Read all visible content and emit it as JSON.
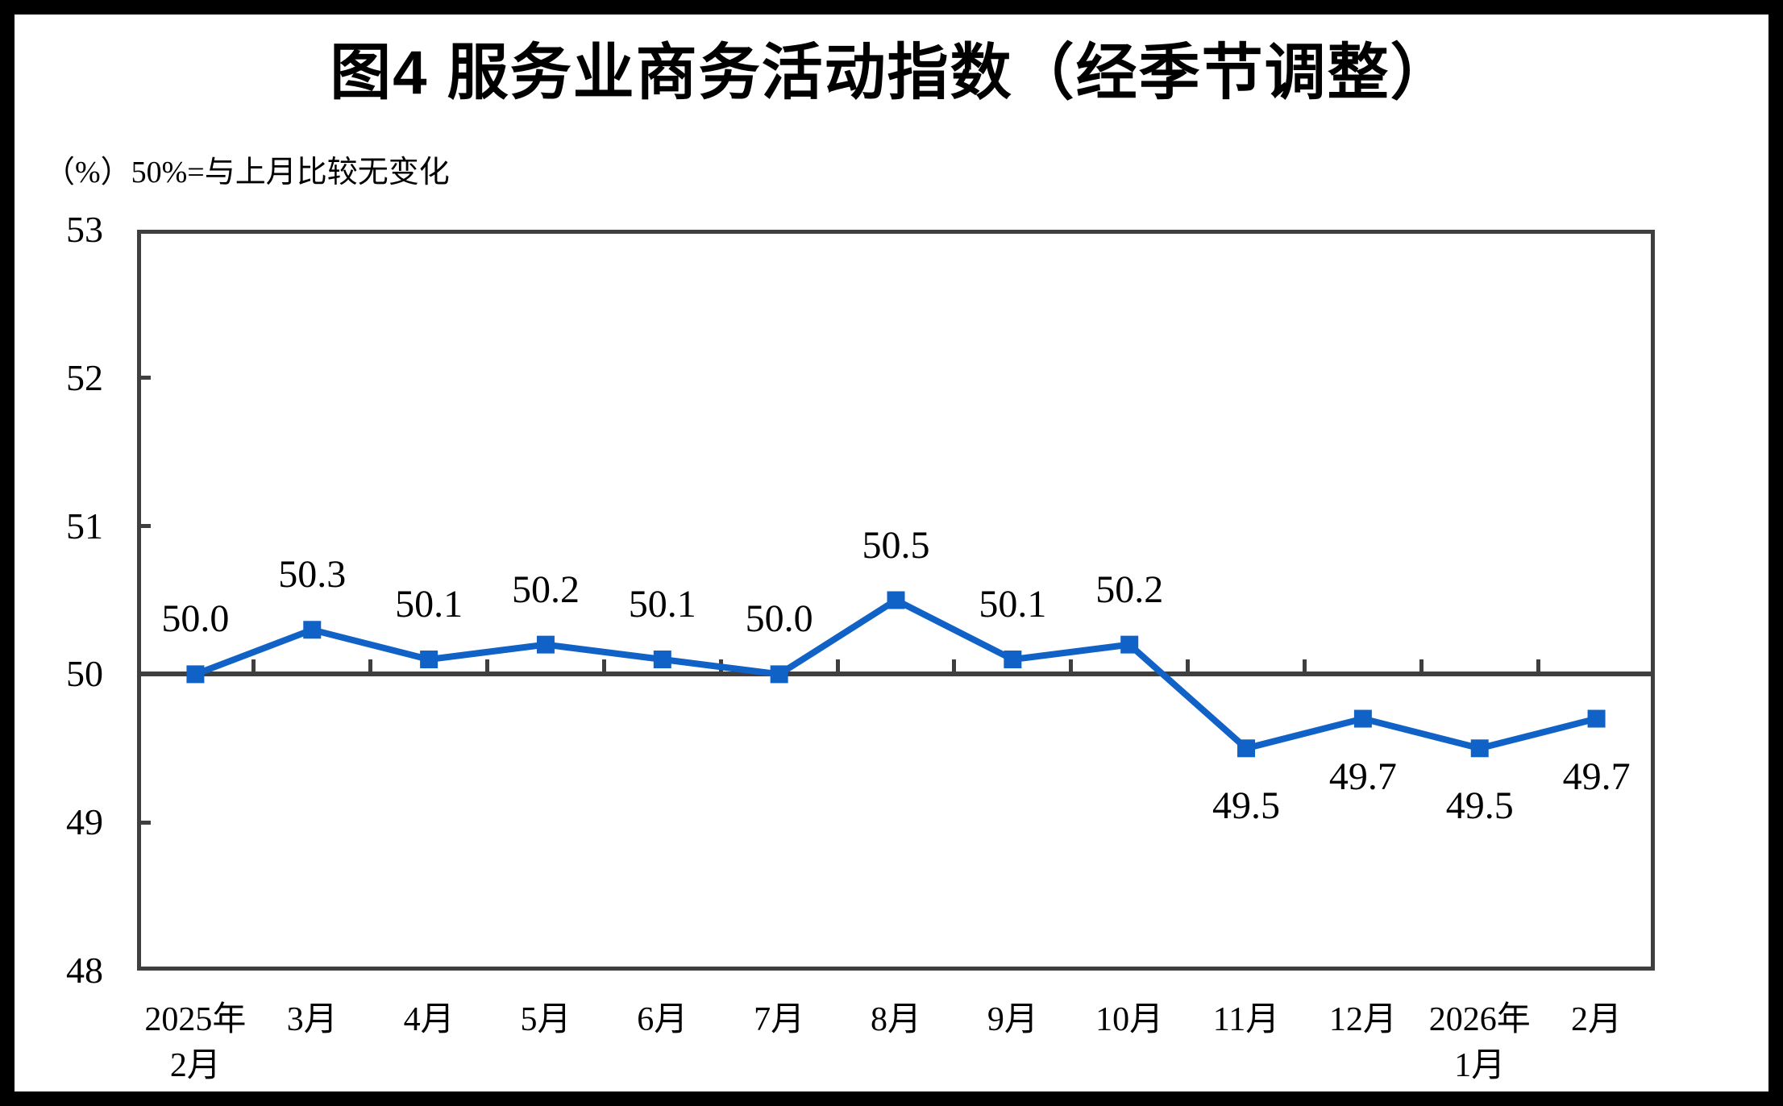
{
  "title": "图4  服务业商务活动指数（经季节调整）",
  "axis_note": "（%）50%=与上月比较无变化",
  "chart_data": {
    "type": "line",
    "title": "图4 服务业商务活动指数（经季节调整）",
    "subtitle": "（%）50%=与上月比较无变化",
    "categories": [
      "2025年2月",
      "3月",
      "4月",
      "5月",
      "6月",
      "7月",
      "8月",
      "9月",
      "10月",
      "11月",
      "12月",
      "2026年1月",
      "2月"
    ],
    "tick_label_lines": [
      [
        "2025年",
        "2月"
      ],
      [
        "3月"
      ],
      [
        "4月"
      ],
      [
        "5月"
      ],
      [
        "6月"
      ],
      [
        "7月"
      ],
      [
        "8月"
      ],
      [
        "9月"
      ],
      [
        "10月"
      ],
      [
        "11月"
      ],
      [
        "12月"
      ],
      [
        "2026年",
        "1月"
      ],
      [
        "2月"
      ]
    ],
    "series": [
      {
        "name": "服务业商务活动指数",
        "values": [
          50.0,
          50.3,
          50.1,
          50.2,
          50.1,
          50.0,
          50.5,
          50.1,
          50.2,
          49.5,
          49.7,
          49.5,
          49.7
        ],
        "labels": [
          "50.0",
          "50.3",
          "50.1",
          "50.2",
          "50.1",
          "50.0",
          "50.5",
          "50.1",
          "50.2",
          "49.5",
          "49.7",
          "49.5",
          "49.7"
        ]
      }
    ],
    "ylim": [
      48,
      53
    ],
    "yticks": [
      53,
      52,
      51,
      50,
      49,
      48
    ],
    "reference_line": 50,
    "grid": false,
    "legend_position": "none",
    "line_color": "#1062C6",
    "marker": "square",
    "axis_color": "#3F3F3F",
    "label_color": "#000000"
  }
}
